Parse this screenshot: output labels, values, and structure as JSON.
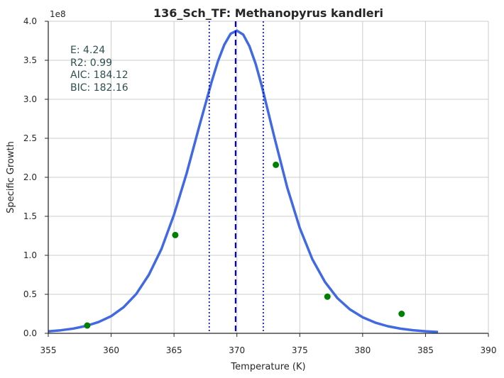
{
  "chart_data": {
    "type": "scatter",
    "title": "136_Sch_TF: Methanopyrus kandleri",
    "xlabel": "Temperature (K)",
    "ylabel": "Specific Growth",
    "y_offset_label": "1e8",
    "xlim": [
      355,
      390
    ],
    "ylim": [
      0,
      400000000
    ],
    "xticks": [
      355,
      360,
      365,
      370,
      375,
      380,
      385,
      390
    ],
    "yticks": [
      0,
      50000000,
      100000000,
      150000000,
      200000000,
      250000000,
      300000000,
      350000000,
      400000000
    ],
    "ytick_labels": [
      "0.0",
      "0.5",
      "1.0",
      "1.5",
      "2.0",
      "2.5",
      "3.0",
      "3.5",
      "4.0"
    ],
    "grid": true,
    "points": {
      "color": "#008000",
      "x": [
        358.1,
        365.1,
        373.1,
        377.2,
        383.1
      ],
      "y": [
        10000000,
        126000000,
        216000000,
        47000000,
        25000000
      ]
    },
    "fit_curve": {
      "color": "#4169e1",
      "x": [
        355.0,
        356.0,
        357.0,
        358.0,
        359.0,
        360.0,
        361.0,
        362.0,
        363.0,
        364.0,
        365.0,
        366.0,
        367.0,
        368.0,
        368.5,
        369.0,
        369.5,
        370.0,
        370.5,
        371.0,
        371.5,
        372.0,
        373.0,
        374.0,
        375.0,
        376.0,
        377.0,
        378.0,
        379.0,
        380.0,
        381.0,
        382.0,
        383.0,
        384.0,
        385.0,
        386.0
      ],
      "y": [
        2500000,
        3900000,
        6100000,
        9500000,
        14500000,
        22000000,
        33500000,
        50500000,
        75000000,
        108000000,
        152000000,
        205000000,
        265000000,
        323000000,
        349000000,
        370000000,
        384000000,
        388000000,
        383000000,
        368000000,
        345000000,
        316000000,
        250000000,
        187000000,
        135000000,
        95000000,
        66000000,
        45000000,
        30500000,
        20500000,
        13700000,
        9100000,
        6000000,
        4000000,
        2600000,
        1700000
      ]
    },
    "peak_line": {
      "x": 369.9,
      "color": "#0000cd"
    },
    "bound_lines": {
      "x": [
        367.8,
        372.1
      ],
      "color": "#0000cd"
    },
    "annotations": [
      "E:  4.24",
      "R2:  0.99",
      "AIC: 184.12",
      "BIC: 182.16"
    ]
  }
}
